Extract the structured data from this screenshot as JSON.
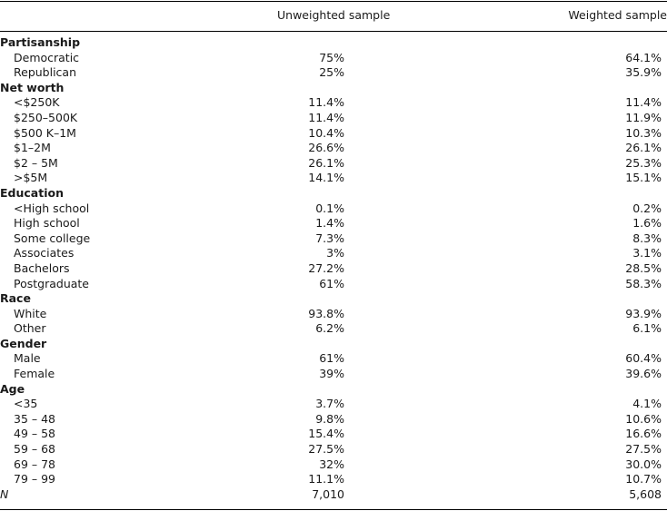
{
  "header": {
    "col1": "Unweighted sample",
    "col2": "Weighted sample"
  },
  "rows": [
    {
      "type": "sec",
      "label": "Partisanship"
    },
    {
      "type": "item",
      "label": "Democratic",
      "v1": "75%",
      "v2": "64.1%"
    },
    {
      "type": "item",
      "label": "Republican",
      "v1": "25%",
      "v2": "35.9%"
    },
    {
      "type": "sec",
      "label": "Net worth"
    },
    {
      "type": "item",
      "label": "<$250K",
      "v1": "11.4%",
      "v2": "11.4%"
    },
    {
      "type": "item",
      "label": "$250–500K",
      "v1": "11.4%",
      "v2": "11.9%"
    },
    {
      "type": "item",
      "label": "$500 K–1M",
      "v1": "10.4%",
      "v2": "10.3%"
    },
    {
      "type": "item",
      "label": "$1–2M",
      "v1": "26.6%",
      "v2": "26.1%"
    },
    {
      "type": "item",
      "label": "$2 – 5M",
      "v1": "26.1%",
      "v2": "25.3%"
    },
    {
      "type": "item",
      "label": ">$5M",
      "v1": "14.1%",
      "v2": "15.1%"
    },
    {
      "type": "sec",
      "label": "Education"
    },
    {
      "type": "item",
      "label": "<High school",
      "v1": "0.1%",
      "v2": "0.2%"
    },
    {
      "type": "item",
      "label": "High school",
      "v1": "1.4%",
      "v2": "1.6%"
    },
    {
      "type": "item",
      "label": "Some college",
      "v1": "7.3%",
      "v2": "8.3%"
    },
    {
      "type": "item",
      "label": "Associates",
      "v1": "3%",
      "v2": "3.1%"
    },
    {
      "type": "item",
      "label": "Bachelors",
      "v1": "27.2%",
      "v2": "28.5%"
    },
    {
      "type": "item",
      "label": "Postgraduate",
      "v1": "61%",
      "v2": "58.3%"
    },
    {
      "type": "sec",
      "label": "Race"
    },
    {
      "type": "item",
      "label": "White",
      "v1": "93.8%",
      "v2": "93.9%"
    },
    {
      "type": "item",
      "label": "Other",
      "v1": "6.2%",
      "v2": "6.1%"
    },
    {
      "type": "sec",
      "label": "Gender"
    },
    {
      "type": "item",
      "label": "Male",
      "v1": "61%",
      "v2": "60.4%"
    },
    {
      "type": "item",
      "label": "Female",
      "v1": "39%",
      "v2": "39.6%"
    },
    {
      "type": "sec",
      "label": "Age"
    },
    {
      "type": "item",
      "label": "<35",
      "v1": "3.7%",
      "v2": "4.1%"
    },
    {
      "type": "item",
      "label": "35 – 48",
      "v1": "9.8%",
      "v2": "10.6%"
    },
    {
      "type": "item",
      "label": "49 – 58",
      "v1": "15.4%",
      "v2": "16.6%"
    },
    {
      "type": "item",
      "label": "59 – 68",
      "v1": "27.5%",
      "v2": "27.5%"
    },
    {
      "type": "item",
      "label": "69 – 78",
      "v1": "32%",
      "v2": "30.0%"
    },
    {
      "type": "item",
      "label": "79 – 99",
      "v1": "11.1%",
      "v2": "10.7%"
    },
    {
      "type": "total",
      "label": "N",
      "v1": "7,010",
      "v2": "5,608"
    }
  ]
}
